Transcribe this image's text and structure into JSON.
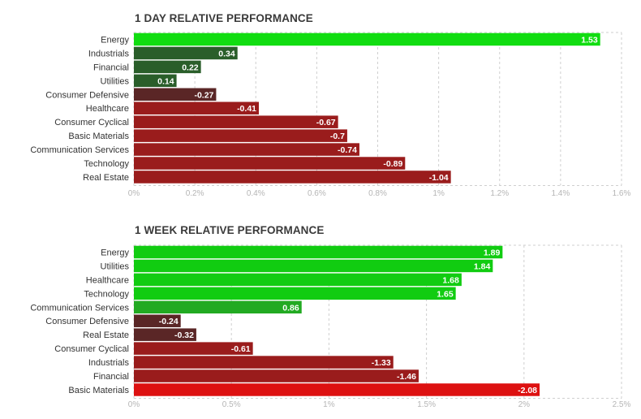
{
  "chart_data": [
    {
      "type": "bar",
      "orientation": "horizontal",
      "title": "1 DAY RELATIVE PERFORMANCE",
      "categories": [
        "Energy",
        "Industrials",
        "Financial",
        "Utilities",
        "Consumer Defensive",
        "Healthcare",
        "Consumer Cyclical",
        "Basic Materials",
        "Communication Services",
        "Technology",
        "Real Estate"
      ],
      "values": [
        1.53,
        0.34,
        0.22,
        0.14,
        -0.27,
        -0.41,
        -0.67,
        -0.7,
        -0.74,
        -0.89,
        -1.04
      ],
      "value_labels": [
        "1.53",
        "0.34",
        "0.22",
        "0.14",
        "-0.27",
        "-0.41",
        "-0.67",
        "-0.7",
        "-0.74",
        "-0.89",
        "-1.04"
      ],
      "xlim": [
        0,
        1.6
      ],
      "xticks": [
        0,
        0.2,
        0.4,
        0.6,
        0.8,
        1.0,
        1.2,
        1.4,
        1.6
      ],
      "xtick_labels": [
        "0%",
        "0.2%",
        "0.4%",
        "0.6%",
        "0.8%",
        "1%",
        "1.2%",
        "1.4%",
        "1.6%"
      ],
      "bars_plot_absolute_value": true,
      "grid": true,
      "colors": {
        "positive_strong": "#11dd11",
        "positive_medium": "#22aa22",
        "positive_weak": "#2a5e2a",
        "negative_weak": "#5a2626",
        "negative_medium": "#9a1c1c",
        "negative_strong": "#dd1111"
      }
    },
    {
      "type": "bar",
      "orientation": "horizontal",
      "title": "1 WEEK RELATIVE PERFORMANCE",
      "categories": [
        "Energy",
        "Utilities",
        "Healthcare",
        "Technology",
        "Communication Services",
        "Consumer Defensive",
        "Real Estate",
        "Consumer Cyclical",
        "Industrials",
        "Financial",
        "Basic Materials"
      ],
      "values": [
        1.89,
        1.84,
        1.68,
        1.65,
        0.86,
        -0.24,
        -0.32,
        -0.61,
        -1.33,
        -1.46,
        -2.08
      ],
      "value_labels": [
        "1.89",
        "1.84",
        "1.68",
        "1.65",
        "0.86",
        "-0.24",
        "-0.32",
        "-0.61",
        "-1.33",
        "-1.46",
        "-2.08"
      ],
      "xlim": [
        0,
        2.5
      ],
      "xticks": [
        0,
        0.5,
        1.0,
        1.5,
        2.0,
        2.5
      ],
      "xtick_labels": [
        "0%",
        "0.5%",
        "1%",
        "1.5%",
        "2%",
        "2.5%"
      ],
      "bars_plot_absolute_value": true,
      "grid": true,
      "colors": {
        "positive_strong": "#11cc11",
        "positive_medium": "#22aa22",
        "positive_weak": "#2a5e2a",
        "negative_weak": "#5a2626",
        "negative_medium": "#9a1c1c",
        "negative_strong": "#dd1111"
      }
    }
  ]
}
